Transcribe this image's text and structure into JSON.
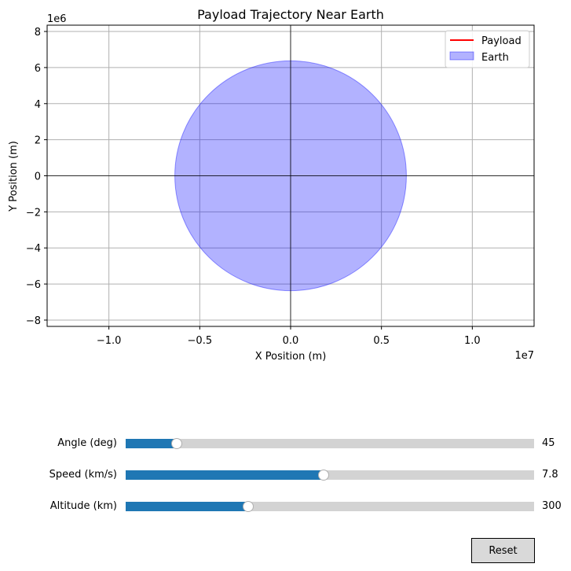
{
  "chart_data": {
    "type": "line",
    "title": "Payload Trajectory Near Earth",
    "xlabel": "X Position (m)",
    "ylabel": "Y Position (m)",
    "x_offset_text": "1e7",
    "y_offset_text": "1e6",
    "xlim": [
      -13.4,
      13.4
    ],
    "ylim": [
      -8.35,
      8.35
    ],
    "xticks": [
      -1.0,
      -0.5,
      0.0,
      0.5,
      1.0
    ],
    "xtick_labels": [
      "−1.0",
      "−0.5",
      "0.0",
      "0.5",
      "1.0"
    ],
    "yticks": [
      -8,
      -6,
      -4,
      -2,
      0,
      2,
      4,
      6,
      8
    ],
    "ytick_labels": [
      "−8",
      "−6",
      "−4",
      "−2",
      "0",
      "2",
      "4",
      "6",
      "8"
    ],
    "grid": true,
    "legend_position": "top-right",
    "series": [
      {
        "name": "Payload",
        "kind": "line",
        "color": "#ff0000",
        "x": [],
        "y": []
      },
      {
        "name": "Earth",
        "kind": "circle",
        "color": "#0000ff",
        "center": [
          0,
          0
        ],
        "radius_m": 6371000
      }
    ]
  },
  "controls": {
    "sliders": [
      {
        "label": "Angle (deg)",
        "value": "45",
        "fill_fraction": 0.125
      },
      {
        "label": "Speed (km/s)",
        "value": "7.8",
        "fill_fraction": 0.485
      },
      {
        "label": "Altitude (km)",
        "value": "300",
        "fill_fraction": 0.3
      }
    ],
    "reset_label": "Reset"
  },
  "colors": {
    "accent": "#1f77b4",
    "track": "#d3d3d3",
    "button": "#d9d9d9"
  }
}
